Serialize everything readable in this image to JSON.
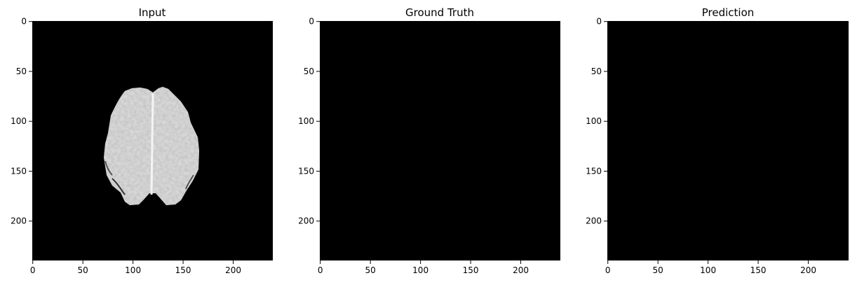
{
  "figure": {
    "panels": [
      {
        "title": "Input",
        "xticks": [
          "0",
          "50",
          "100",
          "150",
          "200"
        ],
        "yticks": [
          "0",
          "50",
          "100",
          "150",
          "200"
        ],
        "image": "brain-mri-slice",
        "background": "#000000"
      },
      {
        "title": "Ground Truth",
        "xticks": [
          "0",
          "50",
          "100",
          "150",
          "200"
        ],
        "yticks": [
          "0",
          "50",
          "100",
          "150",
          "200"
        ],
        "image": "empty-mask",
        "background": "#000000"
      },
      {
        "title": "Prediction",
        "xticks": [
          "0",
          "50",
          "100",
          "150",
          "200"
        ],
        "yticks": [
          "0",
          "50",
          "100",
          "150",
          "200"
        ],
        "image": "empty-mask",
        "background": "#000000"
      }
    ],
    "colors": {
      "image_background": "#000000",
      "brain_tissue": "#d6d6d6",
      "axis": "#000000"
    }
  }
}
